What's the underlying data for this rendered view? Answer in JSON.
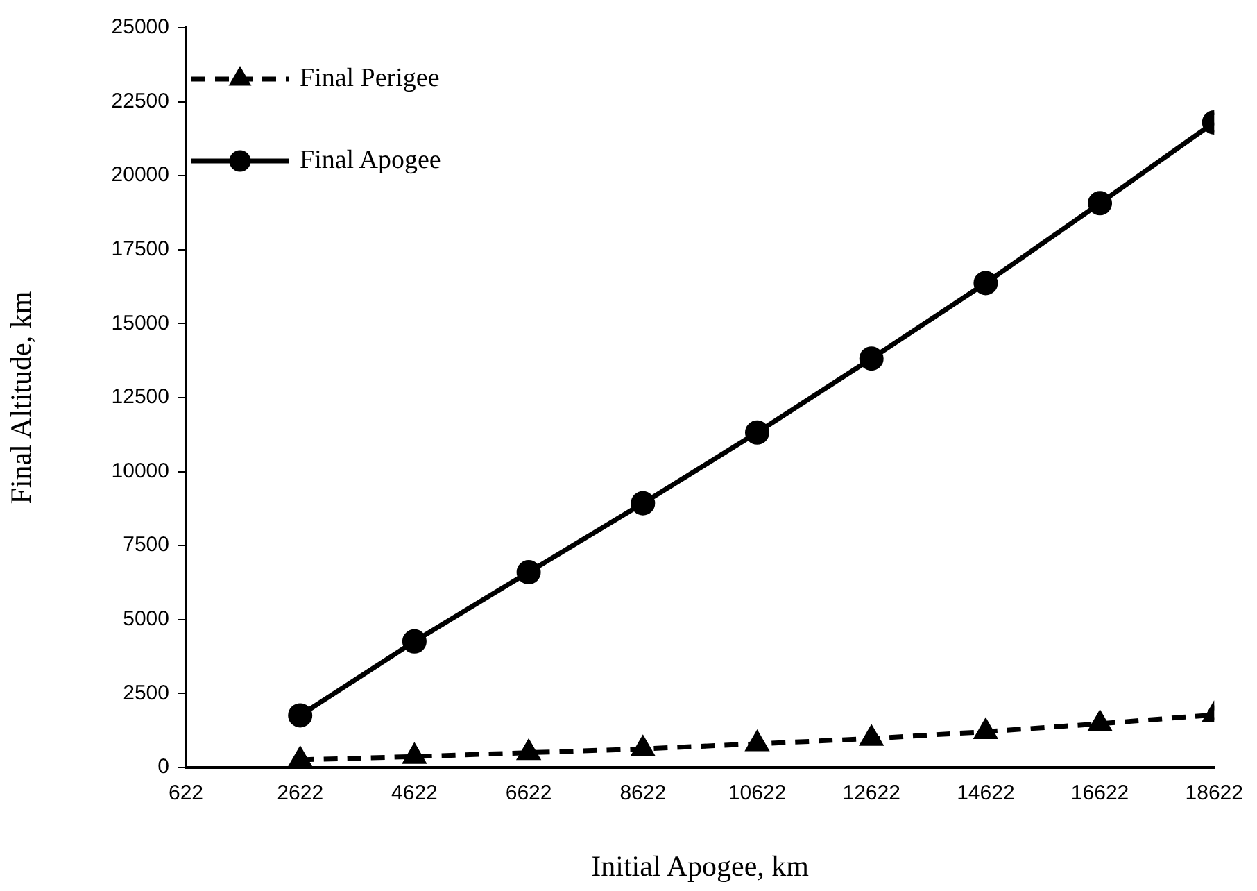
{
  "chart_data": {
    "type": "line",
    "xlabel": "Initial Apogee, km",
    "ylabel": "Final Altitude, km",
    "x": [
      2622,
      4622,
      6622,
      8622,
      10622,
      12622,
      14622,
      16622,
      18622
    ],
    "xlim": [
      622,
      18622
    ],
    "xticks": [
      622,
      2622,
      4622,
      6622,
      8622,
      10622,
      12622,
      14622,
      16622,
      18622
    ],
    "ylim": [
      0,
      25000
    ],
    "yticks": [
      0,
      2500,
      5000,
      7500,
      10000,
      12500,
      15000,
      17500,
      20000,
      22500,
      25000
    ],
    "grid": false,
    "legend": "top left",
    "series": [
      {
        "name": "Final Perigee",
        "color": "#000000",
        "marker": "triangle",
        "line_style": "dashed",
        "values": [
          260,
          370,
          500,
          630,
          800,
          980,
          1210,
          1480,
          1780
        ]
      },
      {
        "name": "Final Apogee",
        "color": "#000000",
        "marker": "circle",
        "line_style": "solid",
        "values": [
          1760,
          4260,
          6600,
          8930,
          11320,
          13820,
          16370,
          19070,
          21800
        ]
      }
    ]
  }
}
